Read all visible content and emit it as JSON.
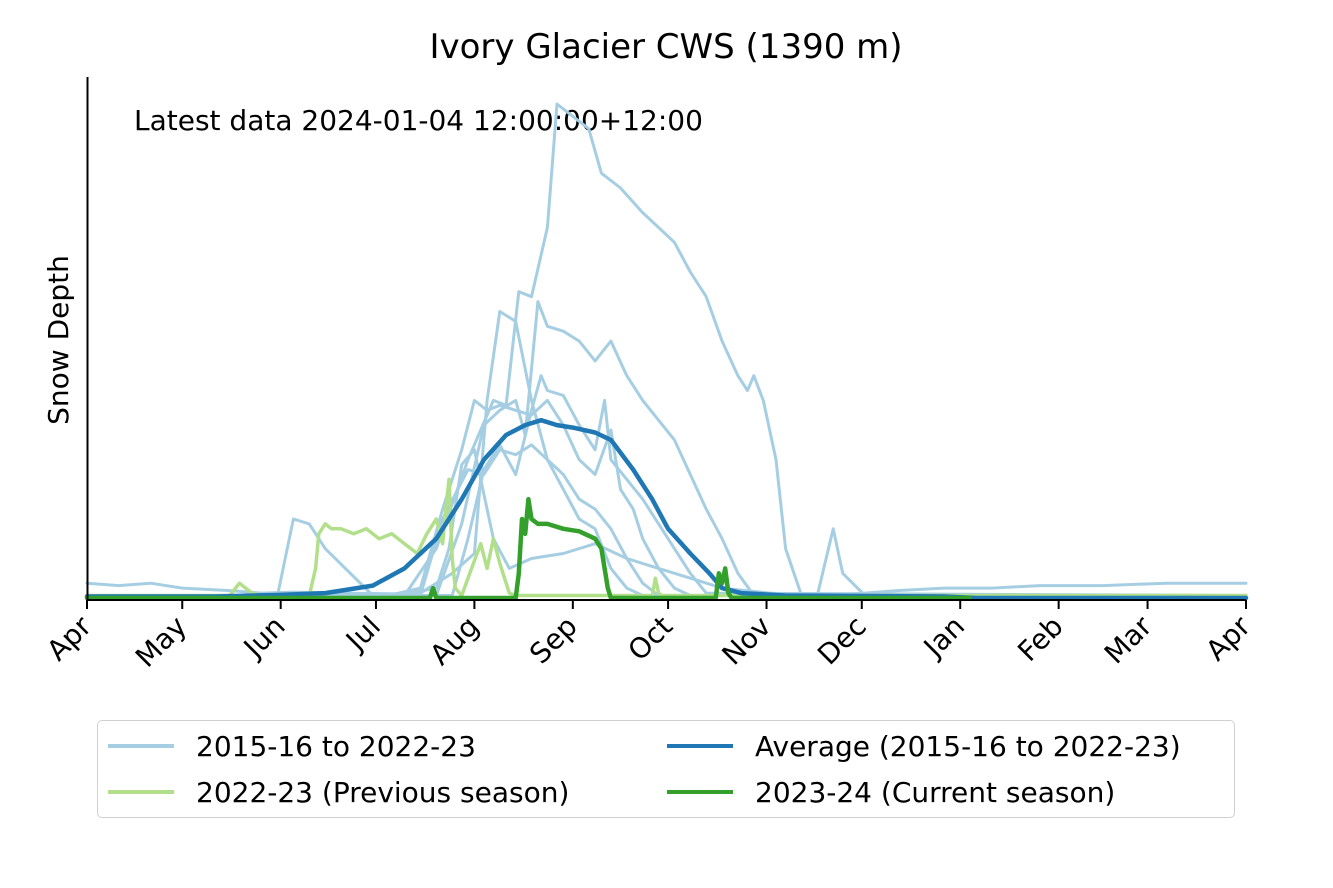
{
  "chart_data": {
    "type": "line",
    "title": "Ivory Glacier CWS (1390 m)",
    "ylabel": "Snow Depth",
    "xlabel": "",
    "annotation": "Latest data 2024-01-04 12:00:00+12:00",
    "x_tick_labels": [
      "Apr",
      "May",
      "Jun",
      "Jul",
      "Aug",
      "Sep",
      "Oct",
      "Nov",
      "Dec",
      "Jan",
      "Feb",
      "Mar",
      "Apr"
    ],
    "x_tick_days": [
      0,
      30,
      61,
      91,
      122,
      153,
      183,
      214,
      244,
      275,
      306,
      334,
      365
    ],
    "xlim": [
      0,
      365
    ],
    "ylim": [
      0,
      100
    ],
    "y_ticks_shown": false,
    "grid": false,
    "legend_position": "bottom",
    "colors": {
      "history": "#a6cee3",
      "average": "#1f78b4",
      "previous": "#b2df8a",
      "current": "#33a02c"
    },
    "series": [
      {
        "name": "2015-16 to 2022-23",
        "role": "history",
        "lines": [
          [
            [
              0,
              3
            ],
            [
              10,
              2.5
            ],
            [
              20,
              3
            ],
            [
              30,
              2
            ],
            [
              45,
              1.5
            ],
            [
              55,
              1
            ],
            [
              65,
              1.2
            ],
            [
              80,
              1
            ],
            [
              100,
              0.8
            ],
            [
              110,
              2
            ],
            [
              114,
              10
            ],
            [
              118,
              27
            ],
            [
              122,
              30
            ],
            [
              128,
              12
            ],
            [
              133,
              6
            ],
            [
              140,
              8
            ],
            [
              150,
              9
            ],
            [
              160,
              11
            ],
            [
              170,
              8
            ],
            [
              180,
              6
            ],
            [
              190,
              4
            ],
            [
              200,
              2
            ],
            [
              215,
              1
            ],
            [
              230,
              0.5
            ],
            [
              245,
              1
            ],
            [
              255,
              1.5
            ],
            [
              270,
              2
            ],
            [
              285,
              2
            ],
            [
              300,
              2.5
            ],
            [
              320,
              2.5
            ],
            [
              340,
              3
            ],
            [
              355,
              3
            ],
            [
              365,
              3
            ]
          ],
          [
            [
              0,
              0.5
            ],
            [
              60,
              0.5
            ],
            [
              65,
              16
            ],
            [
              70,
              15
            ],
            [
              75,
              10
            ],
            [
              90,
              0.5
            ],
            [
              105,
              1
            ],
            [
              115,
              5
            ],
            [
              122,
              9
            ],
            [
              126,
              40
            ],
            [
              130,
              58
            ],
            [
              135,
              56
            ],
            [
              140,
              40
            ],
            [
              145,
              28
            ],
            [
              150,
              25
            ],
            [
              155,
              20
            ],
            [
              160,
              18
            ],
            [
              165,
              14
            ],
            [
              170,
              8
            ],
            [
              175,
              3
            ],
            [
              180,
              0.5
            ],
            [
              200,
              0.5
            ],
            [
              230,
              0.5
            ],
            [
              235,
              14
            ],
            [
              238,
              5
            ],
            [
              245,
              0.5
            ],
            [
              365,
              0.5
            ]
          ],
          [
            [
              0,
              0.5
            ],
            [
              100,
              0.5
            ],
            [
              110,
              10
            ],
            [
              120,
              28
            ],
            [
              128,
              40
            ],
            [
              132,
              39
            ],
            [
              136,
              62
            ],
            [
              140,
              61
            ],
            [
              145,
              75
            ],
            [
              148,
              100
            ],
            [
              152,
              98
            ],
            [
              158,
              95
            ],
            [
              162,
              86
            ],
            [
              168,
              83
            ],
            [
              175,
              78
            ],
            [
              180,
              75
            ],
            [
              185,
              72
            ],
            [
              190,
              66
            ],
            [
              195,
              61
            ],
            [
              200,
              52
            ],
            [
              205,
              45
            ],
            [
              208,
              42
            ],
            [
              210,
              45
            ],
            [
              213,
              40
            ],
            [
              217,
              28
            ],
            [
              220,
              10
            ],
            [
              225,
              0.5
            ],
            [
              365,
              0.5
            ]
          ],
          [
            [
              0,
              0.5
            ],
            [
              110,
              0.5
            ],
            [
              118,
              15
            ],
            [
              125,
              35
            ],
            [
              130,
              38
            ],
            [
              135,
              40
            ],
            [
              138,
              33
            ],
            [
              142,
              60
            ],
            [
              145,
              55
            ],
            [
              150,
              54
            ],
            [
              155,
              52
            ],
            [
              160,
              48
            ],
            [
              165,
              52
            ],
            [
              170,
              45
            ],
            [
              175,
              40
            ],
            [
              180,
              36
            ],
            [
              185,
              32
            ],
            [
              190,
              25
            ],
            [
              195,
              18
            ],
            [
              200,
              12
            ],
            [
              205,
              5
            ],
            [
              210,
              0.5
            ],
            [
              365,
              0.5
            ]
          ],
          [
            [
              0,
              0.5
            ],
            [
              115,
              0.5
            ],
            [
              120,
              12
            ],
            [
              125,
              26
            ],
            [
              130,
              31
            ],
            [
              135,
              25
            ],
            [
              140,
              38
            ],
            [
              143,
              45
            ],
            [
              145,
              42
            ],
            [
              150,
              41
            ],
            [
              155,
              35
            ],
            [
              160,
              30
            ],
            [
              163,
              40
            ],
            [
              165,
              28
            ],
            [
              170,
              24
            ],
            [
              175,
              20
            ],
            [
              180,
              15
            ],
            [
              185,
              10
            ],
            [
              190,
              5
            ],
            [
              195,
              1
            ],
            [
              365,
              0.5
            ]
          ],
          [
            [
              0,
              0.5
            ],
            [
              95,
              0.5
            ],
            [
              105,
              2
            ],
            [
              112,
              18
            ],
            [
              118,
              30
            ],
            [
              122,
              40
            ],
            [
              126,
              38
            ],
            [
              130,
              39
            ],
            [
              135,
              38
            ],
            [
              140,
              37
            ],
            [
              145,
              40
            ],
            [
              150,
              35
            ],
            [
              155,
              28
            ],
            [
              160,
              25
            ],
            [
              165,
              34
            ],
            [
              168,
              22
            ],
            [
              172,
              18
            ],
            [
              175,
              12
            ],
            [
              180,
              6
            ],
            [
              185,
              2
            ],
            [
              190,
              0.5
            ],
            [
              365,
              0.5
            ]
          ],
          [
            [
              0,
              0.5
            ],
            [
              105,
              0.5
            ],
            [
              112,
              16
            ],
            [
              120,
              26
            ],
            [
              125,
              25
            ],
            [
              130,
              30
            ],
            [
              135,
              29
            ],
            [
              140,
              31
            ],
            [
              145,
              28
            ],
            [
              150,
              22
            ],
            [
              155,
              16
            ],
            [
              160,
              14
            ],
            [
              165,
              6
            ],
            [
              170,
              2
            ],
            [
              175,
              0.5
            ],
            [
              365,
              0.5
            ]
          ]
        ]
      },
      {
        "name": "Average (2015-16 to 2022-23)",
        "role": "average",
        "points": [
          [
            0,
            0.3
          ],
          [
            40,
            0.3
          ],
          [
            60,
            0.6
          ],
          [
            75,
            1
          ],
          [
            90,
            2.5
          ],
          [
            100,
            6
          ],
          [
            110,
            12
          ],
          [
            118,
            20
          ],
          [
            125,
            28
          ],
          [
            132,
            33
          ],
          [
            138,
            35
          ],
          [
            143,
            36
          ],
          [
            148,
            35
          ],
          [
            153,
            34.5
          ],
          [
            160,
            33.5
          ],
          [
            165,
            32
          ],
          [
            172,
            26
          ],
          [
            178,
            20
          ],
          [
            183,
            14
          ],
          [
            190,
            9
          ],
          [
            196,
            5
          ],
          [
            200,
            2
          ],
          [
            206,
            1
          ],
          [
            220,
            0.5
          ],
          [
            270,
            0.3
          ],
          [
            280,
            0
          ],
          [
            365,
            0
          ]
        ]
      },
      {
        "name": "2022-23 (Previous season)",
        "role": "previous",
        "points": [
          [
            0,
            0.5
          ],
          [
            45,
            0.5
          ],
          [
            48,
            3
          ],
          [
            52,
            1
          ],
          [
            55,
            0.5
          ],
          [
            70,
            0.5
          ],
          [
            72,
            6
          ],
          [
            73,
            13
          ],
          [
            75,
            15
          ],
          [
            77,
            14
          ],
          [
            80,
            14
          ],
          [
            84,
            13
          ],
          [
            88,
            14
          ],
          [
            92,
            12
          ],
          [
            96,
            13
          ],
          [
            100,
            11
          ],
          [
            104,
            9
          ],
          [
            107,
            13
          ],
          [
            110,
            16
          ],
          [
            112,
            11
          ],
          [
            113,
            18
          ],
          [
            114,
            24
          ],
          [
            115,
            8
          ],
          [
            116,
            2
          ],
          [
            118,
            0.5
          ],
          [
            120,
            4
          ],
          [
            124,
            11
          ],
          [
            126,
            6
          ],
          [
            128,
            12
          ],
          [
            130,
            7
          ],
          [
            133,
            1
          ],
          [
            135,
            0.5
          ],
          [
            155,
            0.5
          ],
          [
            178,
            0.5
          ],
          [
            179,
            4
          ],
          [
            180,
            1
          ],
          [
            181,
            0.5
          ],
          [
            365,
            0.5
          ]
        ]
      },
      {
        "name": "2023-24 (Current season)",
        "role": "current",
        "points": [
          [
            0,
            0
          ],
          [
            108,
            0
          ],
          [
            109,
            2
          ],
          [
            110,
            0
          ],
          [
            135,
            0
          ],
          [
            136,
            5
          ],
          [
            137,
            16
          ],
          [
            138,
            13
          ],
          [
            139,
            20
          ],
          [
            140,
            16
          ],
          [
            142,
            15
          ],
          [
            145,
            15
          ],
          [
            150,
            14
          ],
          [
            155,
            13.5
          ],
          [
            160,
            12
          ],
          [
            162,
            10
          ],
          [
            163,
            6
          ],
          [
            164,
            2
          ],
          [
            165,
            0
          ],
          [
            198,
            0
          ],
          [
            199,
            5
          ],
          [
            200,
            3
          ],
          [
            201,
            6
          ],
          [
            202,
            1
          ],
          [
            203,
            0
          ],
          [
            278,
            0
          ]
        ]
      }
    ]
  }
}
